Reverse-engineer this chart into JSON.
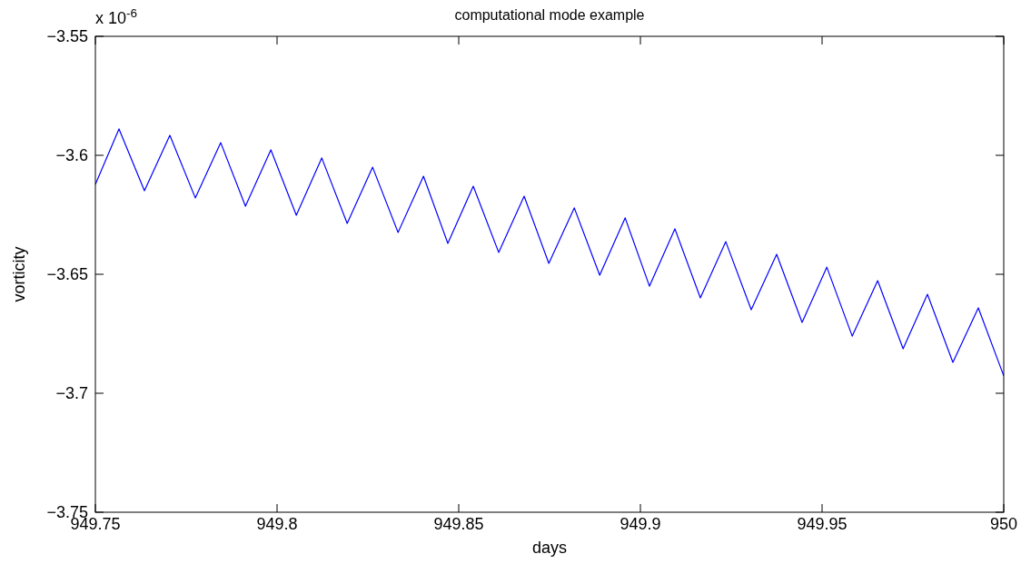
{
  "chart_data": {
    "type": "line",
    "title": "computational mode example",
    "xlabel": "days",
    "ylabel": "vorticity",
    "annotations": [
      "x 10$^{-6}$"
    ],
    "x": [
      949.75,
      949.7565,
      949.7635,
      949.7705,
      949.7775,
      949.7845,
      949.7913,
      949.7983,
      949.8053,
      949.8123,
      949.8193,
      949.8263,
      949.8333,
      949.8403,
      949.847,
      949.854,
      949.861,
      949.868,
      949.8748,
      949.8818,
      949.8888,
      949.8958,
      949.9025,
      949.9095,
      949.9165,
      949.9235,
      949.9305,
      949.9375,
      949.9445,
      949.9513,
      949.9583,
      949.9653,
      949.9723,
      949.979,
      949.986,
      949.993,
      950
    ],
    "series": [
      {
        "color": "#0000ff",
        "values": [
          -3.6122,
          -3.5889,
          -3.6149,
          -3.5916,
          -3.6179,
          -3.5947,
          -3.6214,
          -3.5977,
          -3.6252,
          -3.6011,
          -3.6286,
          -3.605,
          -3.6324,
          -3.6088,
          -3.637,
          -3.613,
          -3.6408,
          -3.6172,
          -3.6454,
          -3.6221,
          -3.6504,
          -3.6263,
          -3.655,
          -3.6309,
          -3.6599,
          -3.6363,
          -3.6649,
          -3.6416,
          -3.6702,
          -3.647,
          -3.676,
          -3.6527,
          -3.6813,
          -3.6584,
          -3.687,
          -3.6641,
          -3.6927
        ]
      }
    ],
    "xlim": [
      949.75,
      950
    ],
    "xticks": [
      949.75,
      949.8,
      949.85,
      949.9,
      949.95,
      950
    ],
    "ylim": [
      -3.75,
      -3.55
    ],
    "yticks": [
      -3.75,
      -3.7,
      -3.65,
      -3.6,
      -3.55
    ],
    "grid": false,
    "marker": "none",
    "line_style": "solid"
  }
}
